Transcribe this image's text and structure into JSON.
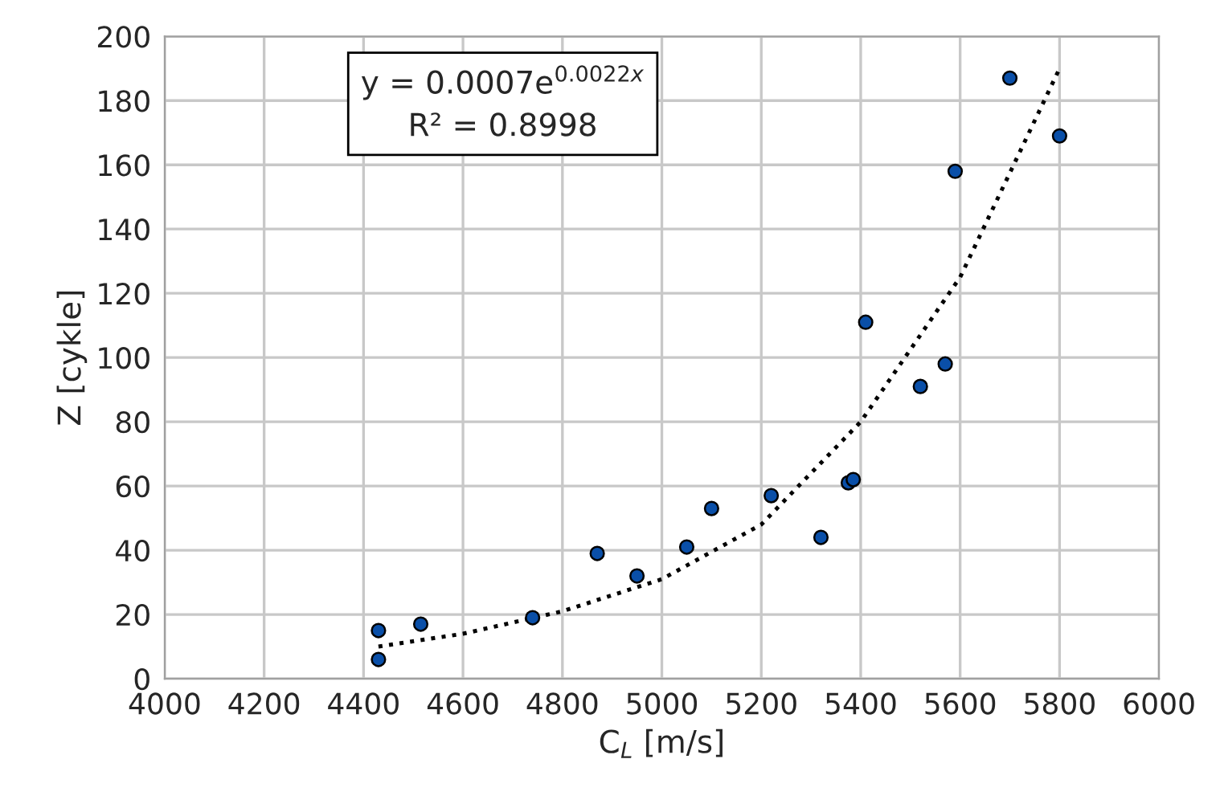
{
  "chart_data": {
    "type": "scatter",
    "xlabel": "C$_{L}$ [m/s]",
    "ylabel": "Z [cykle]",
    "annotations": [
      "y = 0.0007e$^{0.0022x}$",
      "R² = 0.8998"
    ],
    "series": [
      {
        "color": "#0a4fa8",
        "marker": "circle",
        "x": [
          4430,
          4430,
          4515,
          4740,
          4870,
          4950,
          5050,
          5100,
          5220,
          5320,
          5375,
          5385,
          5410,
          5520,
          5570,
          5590,
          5700,
          5800
        ],
        "values": [
          15,
          6,
          17,
          19,
          39,
          32,
          41,
          53,
          57,
          44,
          61,
          62,
          111,
          91,
          98,
          158,
          187,
          169
        ]
      },
      {
        "type": "line",
        "color": "#000000",
        "line_style": "dotted",
        "marker": "none",
        "x": [
          4430,
          4600,
          4800,
          5000,
          5200,
          5400,
          5600,
          5800
        ],
        "values": [
          10,
          14,
          21,
          31,
          48,
          80,
          125,
          190
        ]
      }
    ],
    "xlim": [
      4000,
      6000
    ],
    "xticks": [
      4000,
      4200,
      4400,
      4600,
      4800,
      5000,
      5200,
      5400,
      5600,
      5800,
      6000
    ],
    "ylim": [
      0,
      200
    ],
    "yticks": [
      0,
      20,
      40,
      60,
      80,
      100,
      120,
      140,
      160,
      180,
      200
    ],
    "grid": true
  }
}
